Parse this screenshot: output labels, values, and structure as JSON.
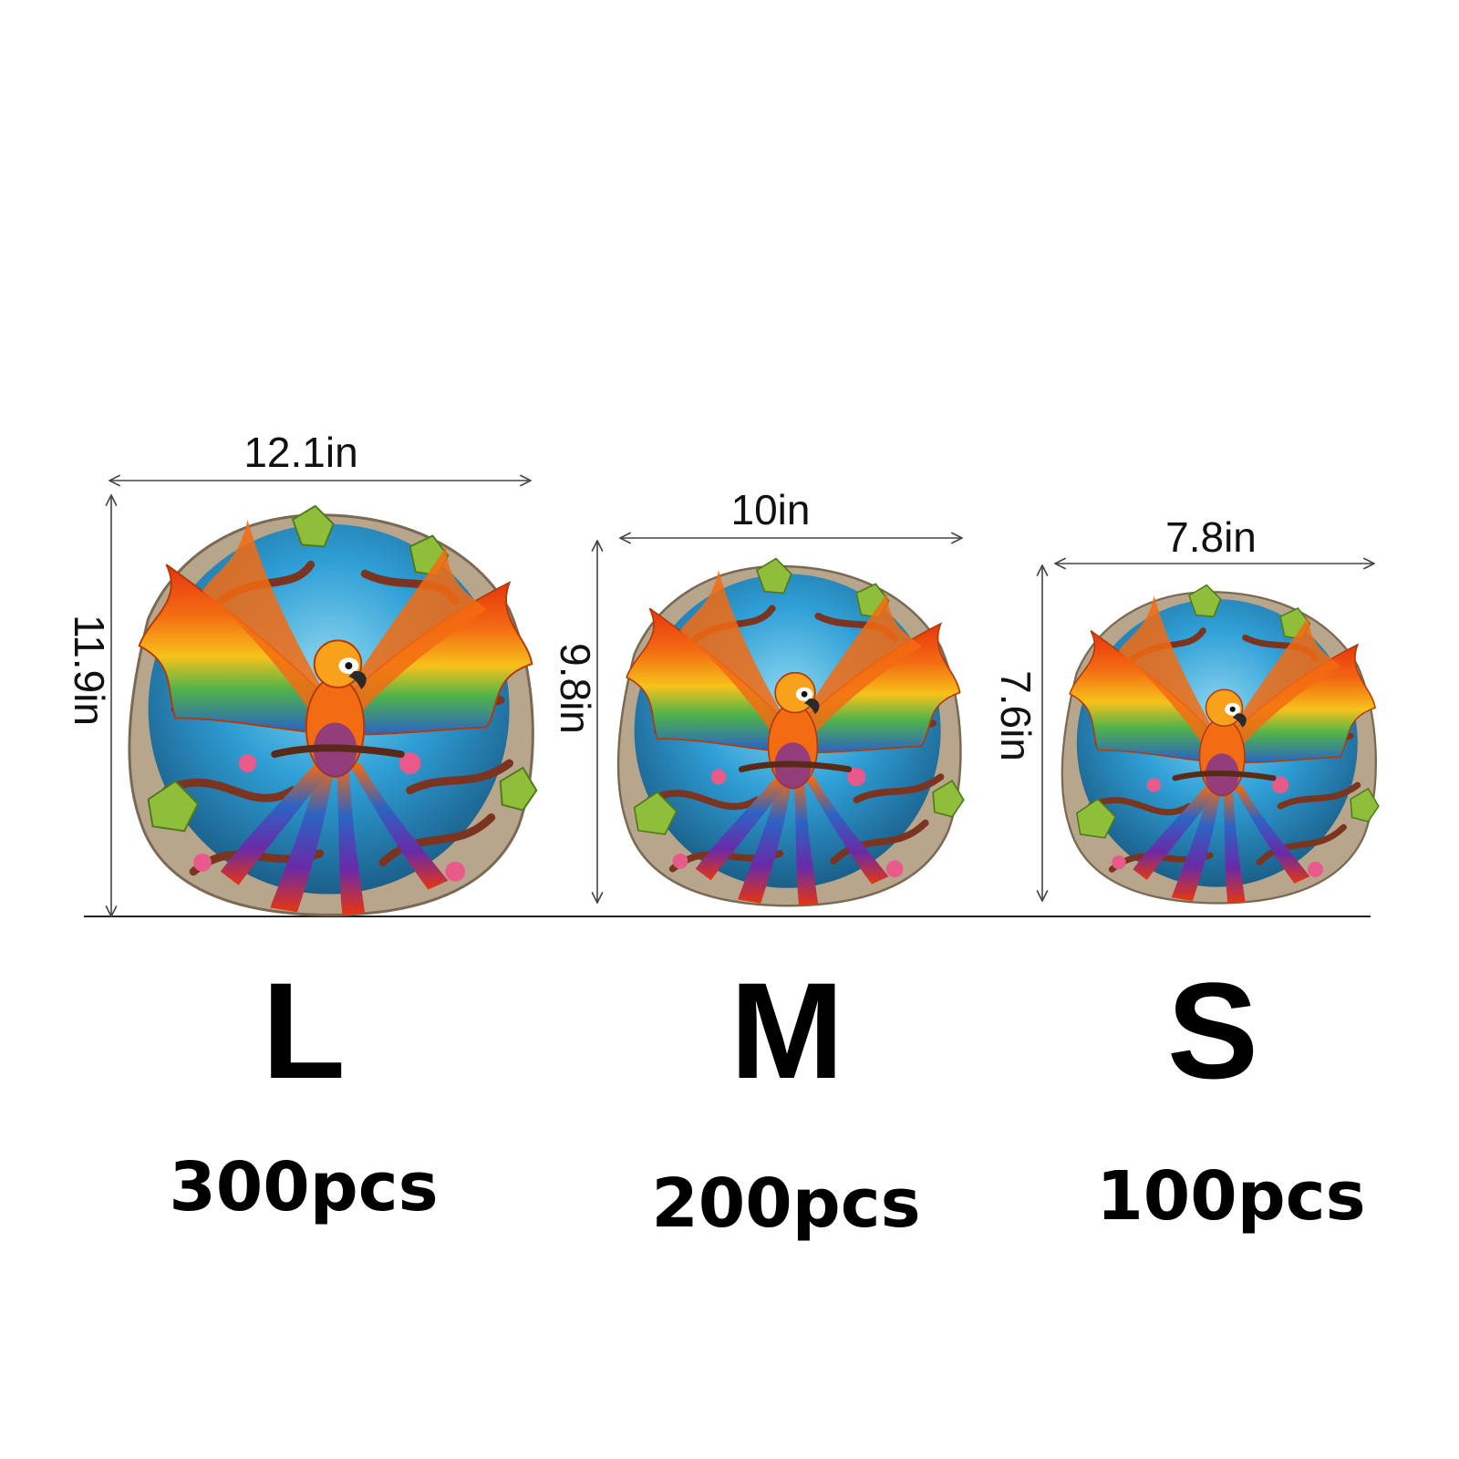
{
  "colors": {
    "background": "#ffffff",
    "text": "#000000",
    "dimension_line": "#444444",
    "sky": "#2f9fd6",
    "branch": "#7a3420",
    "leaf": "#8fbf3a",
    "wing_orange": "#f36b12",
    "wing_yellow": "#f7c21a",
    "wing_green": "#4fb34a",
    "wing_blue": "#2b64c4",
    "tail_purple": "#6a2aa8",
    "flower_pink": "#e85a8a"
  },
  "image": {
    "subject_icon": "parrot-puzzle-illustration"
  },
  "sizes": [
    {
      "letter": "L",
      "pieces": "300pcs",
      "width_label": "12.1in",
      "height_label": "11.9in"
    },
    {
      "letter": "M",
      "pieces": "200pcs",
      "width_label": "10in",
      "height_label": "9.8in"
    },
    {
      "letter": "S",
      "pieces": "100pcs",
      "width_label": "7.8in",
      "height_label": "7.6in"
    }
  ]
}
